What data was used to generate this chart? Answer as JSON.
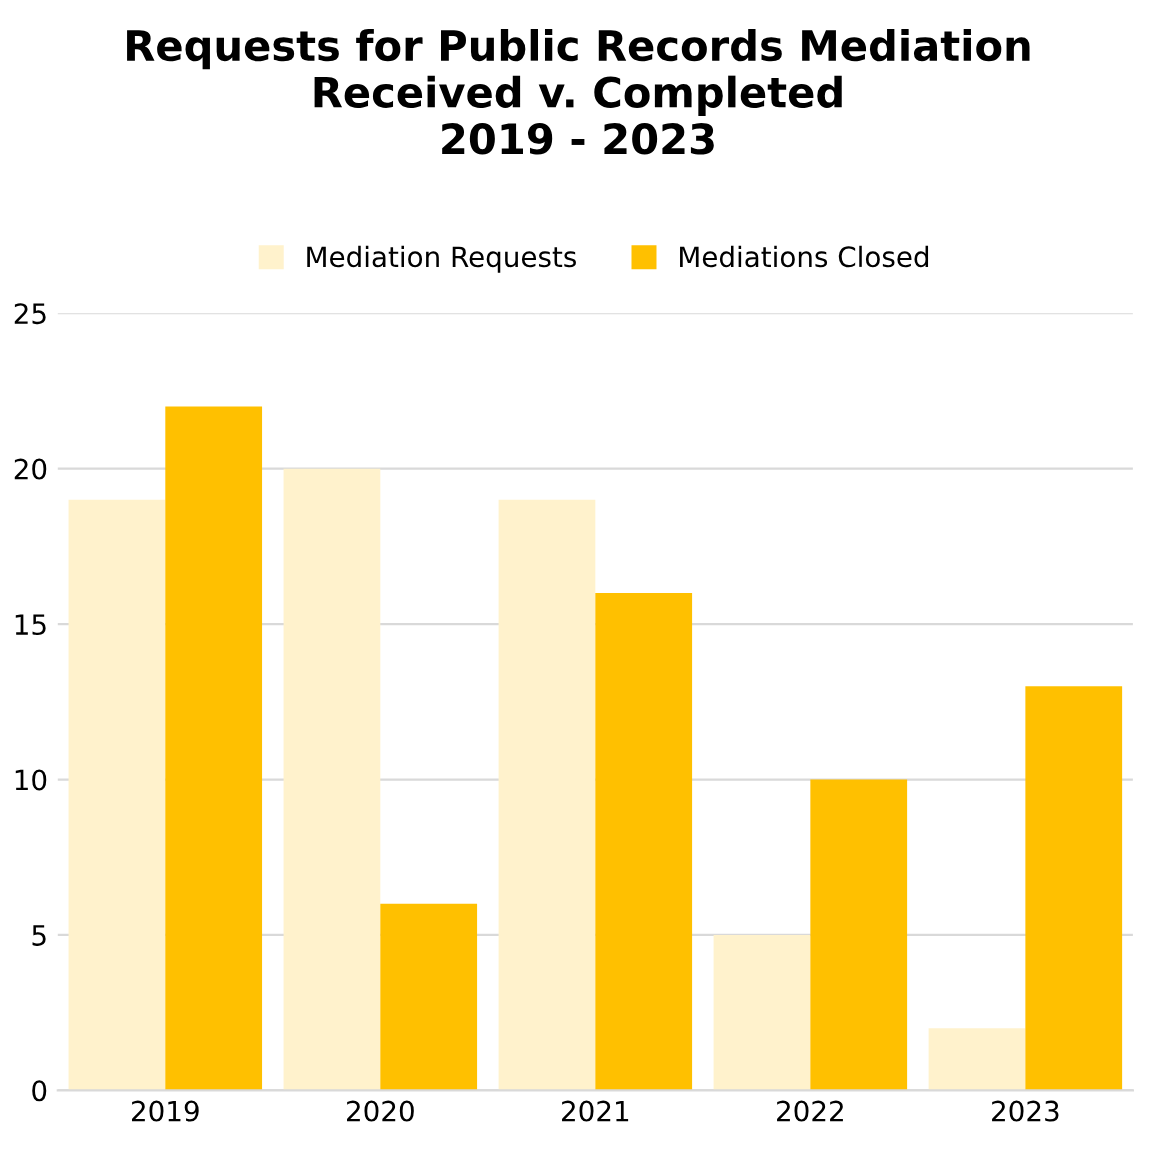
{
  "chart_data": {
    "type": "bar",
    "title": "Requests for Public Records Mediation\nReceived v. Completed\n2019 - 2023",
    "categories": [
      "2019",
      "2020",
      "2021",
      "2022",
      "2023"
    ],
    "series": [
      {
        "name": "Mediation Requests",
        "color": "#fff2cc",
        "values": [
          19,
          20,
          19,
          5,
          2
        ]
      },
      {
        "name": "Mediations Closed",
        "color": "#ffc000",
        "values": [
          22,
          6,
          16,
          10,
          13
        ]
      }
    ],
    "ylim": [
      0,
      25
    ],
    "yticks": [
      0,
      5,
      10,
      15,
      20,
      25
    ],
    "grid": "y",
    "legend": "top"
  }
}
